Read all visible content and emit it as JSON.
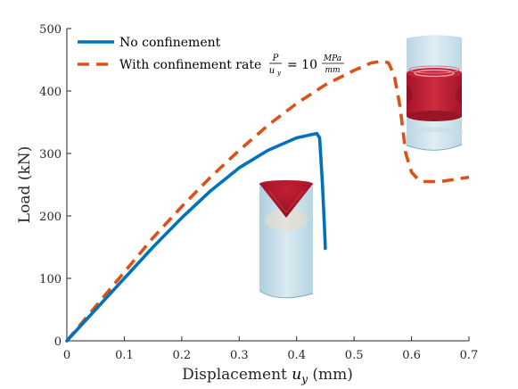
{
  "chart_data": {
    "type": "line",
    "xlabel_text": "Displacement",
    "xlabel_symbol": "u",
    "xlabel_subscript": "y",
    "xlabel_unit": "(mm)",
    "ylabel": "Load (kN)",
    "xlim": [
      0,
      0.7
    ],
    "ylim": [
      0,
      500
    ],
    "xticks": [
      "0",
      "0.1",
      "0.2",
      "0.3",
      "0.4",
      "0.5",
      "0.6",
      "0.7"
    ],
    "yticks": [
      "0",
      "100",
      "200",
      "300",
      "400",
      "500"
    ],
    "grid": false,
    "legend_position": "top-left",
    "series": [
      {
        "name": "No confinement",
        "color": "#0072BD",
        "style": "solid",
        "x": [
          0,
          0.05,
          0.1,
          0.15,
          0.2,
          0.25,
          0.3,
          0.35,
          0.4,
          0.425,
          0.435,
          0.44,
          0.445,
          0.447,
          0.449,
          0.45
        ],
        "y": [
          0,
          50,
          100,
          150,
          197,
          240,
          277,
          305,
          325,
          330,
          332,
          325,
          250,
          210,
          170,
          148
        ]
      },
      {
        "name": "With confinement rate",
        "legend_math": {
          "fraction_numerator": "P",
          "fraction_denominator_symbol": "u",
          "fraction_denominator_subscript": "y",
          "equals": "= 10",
          "unit_numerator": "MPa",
          "unit_denominator": "mm"
        },
        "color": "#D95319",
        "style": "dashed",
        "x": [
          0,
          0.05,
          0.1,
          0.15,
          0.2,
          0.25,
          0.3,
          0.35,
          0.4,
          0.45,
          0.5,
          0.53,
          0.55,
          0.56,
          0.57,
          0.58,
          0.59,
          0.6,
          0.61,
          0.62,
          0.65,
          0.7
        ],
        "y": [
          0,
          55,
          110,
          165,
          215,
          262,
          305,
          345,
          380,
          410,
          433,
          445,
          448,
          445,
          425,
          375,
          300,
          270,
          260,
          255,
          255,
          262
        ]
      }
    ]
  },
  "insets": [
    {
      "name": "No confinement",
      "shows": "damaged specimen with cone-shaped failure at top"
    },
    {
      "name": "With confinement",
      "shows": "damaged specimen with band-shaped failure at mid-height"
    }
  ],
  "colors": {
    "axis": "#262626",
    "specimen_light": "#b8d6e4",
    "specimen_edge": "#8fb6c9",
    "damage_red": "#b0192d",
    "damage_dark": "#7e0a1c"
  }
}
